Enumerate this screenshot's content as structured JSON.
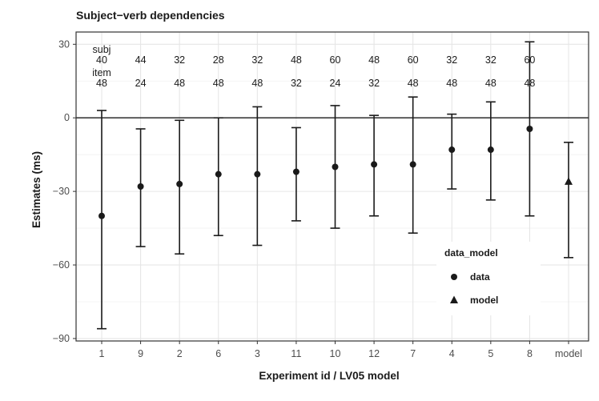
{
  "chart_data": {
    "type": "scatter",
    "title": "Subject−verb dependencies",
    "xlabel": "Experiment id / LV05 model",
    "ylabel": "Estimates (ms)",
    "ylim": [
      -91,
      35
    ],
    "yticks": [
      30,
      0,
      -30,
      -60,
      -90
    ],
    "grid": true,
    "reference_line": 0,
    "categories": [
      "1",
      "9",
      "2",
      "6",
      "3",
      "11",
      "10",
      "12",
      "7",
      "4",
      "5",
      "8",
      "model"
    ],
    "points": [
      {
        "x": "1",
        "estimate": -40,
        "lower": -86,
        "upper": 3,
        "group": "data",
        "subj": "40",
        "item": "48"
      },
      {
        "x": "9",
        "estimate": -28,
        "lower": -52.5,
        "upper": -4.5,
        "group": "data",
        "subj": "44",
        "item": "24"
      },
      {
        "x": "2",
        "estimate": -27,
        "lower": -55.5,
        "upper": -1,
        "group": "data",
        "subj": "32",
        "item": "48"
      },
      {
        "x": "6",
        "estimate": -23,
        "lower": -48,
        "upper": 0,
        "group": "data",
        "subj": "28",
        "item": "48"
      },
      {
        "x": "3",
        "estimate": -23,
        "lower": -52,
        "upper": 4.5,
        "group": "data",
        "subj": "32",
        "item": "48"
      },
      {
        "x": "11",
        "estimate": -22,
        "lower": -42,
        "upper": -4,
        "group": "data",
        "subj": "48",
        "item": "32"
      },
      {
        "x": "10",
        "estimate": -20,
        "lower": -45,
        "upper": 5,
        "group": "data",
        "subj": "60",
        "item": "24"
      },
      {
        "x": "12",
        "estimate": -19,
        "lower": -40,
        "upper": 1,
        "group": "data",
        "subj": "48",
        "item": "32"
      },
      {
        "x": "7",
        "estimate": -19,
        "lower": -47,
        "upper": 8.5,
        "group": "data",
        "subj": "60",
        "item": "48"
      },
      {
        "x": "4",
        "estimate": -13,
        "lower": -29,
        "upper": 1.5,
        "group": "data",
        "subj": "32",
        "item": "48"
      },
      {
        "x": "5",
        "estimate": -13,
        "lower": -33.5,
        "upper": 6.5,
        "group": "data",
        "subj": "32",
        "item": "48"
      },
      {
        "x": "8",
        "estimate": -4.5,
        "lower": -40,
        "upper": 31,
        "group": "data",
        "subj": "60",
        "item": "48"
      },
      {
        "x": "model",
        "estimate": -26,
        "lower": -57,
        "upper": -10,
        "group": "model"
      }
    ],
    "annotation_labels": {
      "subj": "subj",
      "item": "item"
    },
    "legend": {
      "title": "data_model",
      "placement": "bottom-right",
      "entries": [
        {
          "label": "data",
          "shape": "circle"
        },
        {
          "label": "model",
          "shape": "triangle"
        }
      ]
    },
    "colors": {
      "marks": "#1a1a1a",
      "grid": "#e6e6e6",
      "border": "#333333",
      "panel": "#ffffff"
    }
  }
}
